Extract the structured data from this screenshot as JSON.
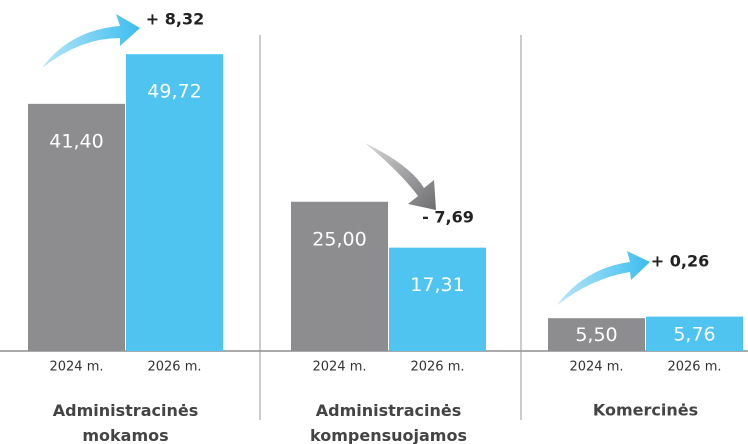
{
  "chart_data": {
    "type": "bar",
    "categories": [
      "Administracinės mokamos",
      "Administracinės kompensuojamos",
      "Komercinės"
    ],
    "series": [
      {
        "name": "2024 m.",
        "color": "#8d8d90",
        "values": [
          41.4,
          25.0,
          5.5
        ],
        "value_labels": [
          "41,40",
          "25,00",
          "5,50"
        ]
      },
      {
        "name": "2026 m.",
        "color": "#4fc4f0",
        "values": [
          49.72,
          17.31,
          5.76
        ],
        "value_labels": [
          "49,72",
          "17,31",
          "5,76"
        ]
      }
    ],
    "annotations": [
      "+ 8,32",
      "- 7,69",
      "+ 0,26"
    ]
  }
}
